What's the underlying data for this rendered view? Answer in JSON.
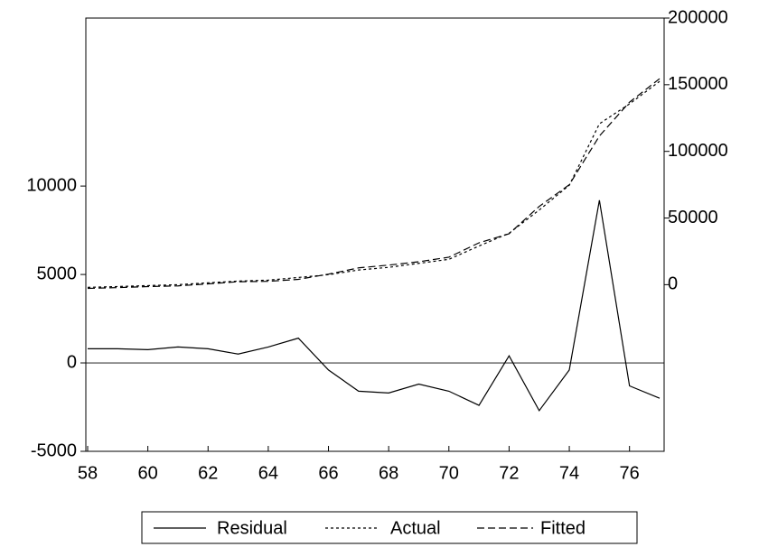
{
  "chart_data": {
    "type": "line",
    "x": [
      58,
      59,
      60,
      61,
      62,
      63,
      64,
      65,
      66,
      67,
      68,
      69,
      70,
      71,
      72,
      73,
      74,
      75,
      76,
      77
    ],
    "xlim": [
      58,
      77
    ],
    "xticks": [
      58,
      60,
      62,
      64,
      66,
      68,
      70,
      72,
      74,
      76
    ],
    "ylim": [
      -5000,
      19500
    ],
    "yticks": [
      -5000,
      0,
      5000,
      10000
    ],
    "y2lim": [
      -125000,
      200000
    ],
    "y2ticks": [
      0,
      50000,
      100000,
      150000,
      200000
    ],
    "zero_line": true,
    "legend": "bottom",
    "series": [
      {
        "name": "Residual",
        "color": "#000000",
        "dash": "solid",
        "axis": "y",
        "values": [
          800,
          800,
          750,
          900,
          800,
          500,
          900,
          1400,
          -400,
          -1600,
          -1700,
          -1200,
          -1600,
          -2400,
          400,
          -2700,
          -400,
          9200,
          -1300,
          -2000
        ]
      },
      {
        "name": "Actual",
        "color": "#000000",
        "dash": "dotted",
        "axis": "y2",
        "values": [
          -2000,
          -1400,
          -700,
          0,
          1400,
          2700,
          3400,
          5400,
          7500,
          11000,
          13000,
          16000,
          19000,
          29000,
          38600,
          56000,
          74600,
          120700,
          135600,
          152500
        ]
      },
      {
        "name": "Fitted",
        "color": "#000000",
        "dash": "dashed",
        "axis": "y2",
        "values": [
          -2800,
          -2200,
          -1450,
          -900,
          600,
          2200,
          2500,
          4000,
          7900,
          12600,
          14700,
          17200,
          20600,
          31400,
          38200,
          58700,
          75000,
          111500,
          136900,
          154500
        ]
      }
    ]
  }
}
